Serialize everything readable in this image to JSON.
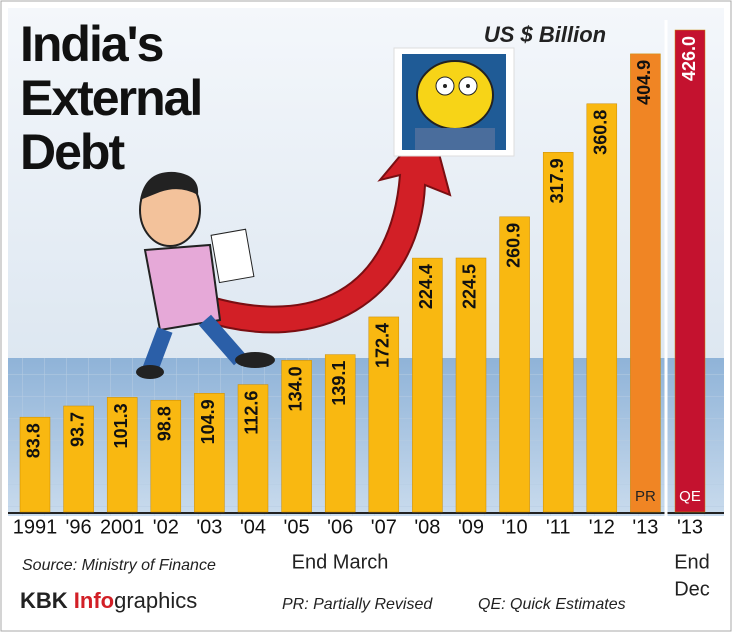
{
  "chart_data": {
    "type": "bar",
    "title_lines": [
      "India's",
      "External",
      "Debt"
    ],
    "unit": "US $ Billion",
    "categories": [
      "1991",
      "'96",
      "2001",
      "'02",
      "'03",
      "'04",
      "'05",
      "'06",
      "'07",
      "'08",
      "'09",
      "'10",
      "'11",
      "'12",
      "'13",
      "'13"
    ],
    "values": [
      83.8,
      93.7,
      101.3,
      98.8,
      104.9,
      112.6,
      134.0,
      139.1,
      172.4,
      224.4,
      224.5,
      260.9,
      317.9,
      360.8,
      404.9,
      426.0
    ],
    "value_labels": [
      "83.8",
      "93.7",
      "101.3",
      "98.8",
      "104.9",
      "112.6",
      "134.0",
      "139.1",
      "172.4",
      "224.4",
      "224.5",
      "260.9",
      "317.9",
      "360.8",
      "404.9",
      "426.0"
    ],
    "colors": [
      "#f9b811",
      "#f9b811",
      "#f9b811",
      "#f9b811",
      "#f9b811",
      "#f9b811",
      "#f9b811",
      "#f9b811",
      "#f9b811",
      "#f9b811",
      "#f9b811",
      "#f9b811",
      "#f9b811",
      "#f9b811",
      "#f08524",
      "#c4122f"
    ],
    "bar_tags": [
      "PR",
      "QE"
    ],
    "period_left": "End March",
    "period_right": [
      "End",
      "Dec"
    ],
    "source": "Source: Ministry of Finance",
    "brand": [
      "KBK ",
      "Info",
      "graphics"
    ],
    "notes": [
      "PR: Partially Revised",
      "QE: Quick Estimates"
    ]
  }
}
